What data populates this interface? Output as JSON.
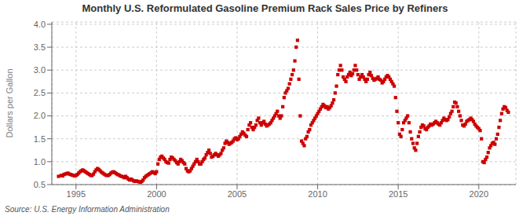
{
  "chart_data": {
    "type": "scatter",
    "title": "Monthly U.S. Reformulated Gasoline Premium Rack Sales Price by Refiners",
    "ylabel": "Dollars per Gallon",
    "annotations": [
      "Source: U.S. Energy Information Administration"
    ],
    "color": "#cc0000",
    "marker": "square",
    "grid": true,
    "xlim": [
      1993.5,
      2022.3
    ],
    "ylim": [
      0.5,
      4.05
    ],
    "xticks": [
      1995,
      2000,
      2005,
      2010,
      2015,
      2020
    ],
    "yticks": [
      0.5,
      {
        "value": 1.0,
        "label": "1.0"
      },
      1.5,
      {
        "value": 2.0,
        "label": "2.0"
      },
      2.5,
      {
        "value": 3.0,
        "label": "3.0"
      },
      3.5,
      {
        "value": 4.0,
        "label": "4.0"
      }
    ],
    "x": [
      1993.917,
      1994.083,
      1994.167,
      1994.25,
      1994.333,
      1994.417,
      1994.5,
      1994.583,
      1994.667,
      1994.75,
      1994.833,
      1994.917,
      1995.0,
      1995.083,
      1995.167,
      1995.25,
      1995.333,
      1995.417,
      1995.5,
      1995.583,
      1995.667,
      1995.75,
      1995.833,
      1995.917,
      1996.0,
      1996.083,
      1996.167,
      1996.25,
      1996.333,
      1996.417,
      1996.5,
      1996.583,
      1996.667,
      1996.75,
      1996.833,
      1996.917,
      1997.0,
      1997.083,
      1997.167,
      1997.25,
      1997.333,
      1997.417,
      1997.5,
      1997.583,
      1997.667,
      1997.75,
      1997.833,
      1997.917,
      1998.0,
      1998.083,
      1998.167,
      1998.25,
      1998.333,
      1998.417,
      1998.5,
      1998.583,
      1998.667,
      1998.75,
      1998.833,
      1998.917,
      1999.0,
      1999.083,
      1999.167,
      1999.25,
      1999.333,
      1999.417,
      1999.5,
      1999.583,
      1999.667,
      1999.75,
      1999.833,
      1999.917,
      2000.0,
      2000.083,
      2000.167,
      2000.25,
      2000.333,
      2000.417,
      2000.5,
      2000.583,
      2000.667,
      2000.75,
      2000.833,
      2000.917,
      2001.0,
      2001.083,
      2001.167,
      2001.25,
      2001.333,
      2001.417,
      2001.5,
      2001.583,
      2001.667,
      2001.75,
      2001.833,
      2001.917,
      2002.0,
      2002.083,
      2002.167,
      2002.25,
      2002.333,
      2002.417,
      2002.5,
      2002.583,
      2002.667,
      2002.75,
      2002.833,
      2002.917,
      2003.0,
      2003.083,
      2003.167,
      2003.25,
      2003.333,
      2003.417,
      2003.5,
      2003.583,
      2003.667,
      2003.75,
      2003.833,
      2003.917,
      2004.0,
      2004.083,
      2004.167,
      2004.25,
      2004.333,
      2004.417,
      2004.5,
      2004.583,
      2004.667,
      2004.75,
      2004.833,
      2004.917,
      2005.0,
      2005.083,
      2005.167,
      2005.25,
      2005.333,
      2005.417,
      2005.5,
      2005.583,
      2005.667,
      2005.75,
      2005.833,
      2005.917,
      2006.0,
      2006.083,
      2006.167,
      2006.25,
      2006.333,
      2006.417,
      2006.5,
      2006.583,
      2006.667,
      2006.75,
      2006.833,
      2006.917,
      2007.0,
      2007.083,
      2007.167,
      2007.25,
      2007.333,
      2007.417,
      2007.5,
      2007.583,
      2007.667,
      2007.75,
      2007.833,
      2007.917,
      2008.0,
      2008.083,
      2008.167,
      2008.25,
      2008.333,
      2008.417,
      2008.5,
      2008.583,
      2008.667,
      2008.75,
      2008.833,
      2008.917,
      2009.0,
      2009.083,
      2009.167,
      2009.25,
      2009.333,
      2009.417,
      2009.5,
      2009.583,
      2009.667,
      2009.75,
      2009.833,
      2009.917,
      2010.0,
      2010.083,
      2010.167,
      2010.25,
      2010.333,
      2010.417,
      2010.5,
      2010.583,
      2010.667,
      2010.75,
      2010.833,
      2010.917,
      2011.0,
      2011.083,
      2011.167,
      2011.25,
      2011.333,
      2011.417,
      2011.5,
      2011.583,
      2011.667,
      2011.75,
      2011.833,
      2011.917,
      2012.0,
      2012.083,
      2012.167,
      2012.25,
      2012.333,
      2012.417,
      2012.5,
      2012.583,
      2012.667,
      2012.75,
      2012.833,
      2012.917,
      2013.0,
      2013.083,
      2013.167,
      2013.25,
      2013.333,
      2013.417,
      2013.5,
      2013.583,
      2013.667,
      2013.75,
      2013.833,
      2013.917,
      2014.0,
      2014.083,
      2014.167,
      2014.25,
      2014.333,
      2014.417,
      2014.5,
      2014.583,
      2014.667,
      2014.75,
      2014.833,
      2014.917,
      2015.0,
      2015.083,
      2015.167,
      2015.25,
      2015.333,
      2015.417,
      2015.5,
      2015.583,
      2015.667,
      2015.75,
      2015.833,
      2015.917,
      2016.0,
      2016.083,
      2016.167,
      2016.25,
      2016.333,
      2016.417,
      2016.5,
      2016.583,
      2016.667,
      2016.75,
      2016.833,
      2016.917,
      2017.0,
      2017.083,
      2017.167,
      2017.25,
      2017.333,
      2017.417,
      2017.5,
      2017.583,
      2017.667,
      2017.75,
      2017.833,
      2017.917,
      2018.0,
      2018.083,
      2018.167,
      2018.25,
      2018.333,
      2018.417,
      2018.5,
      2018.583,
      2018.667,
      2018.75,
      2018.833,
      2018.917,
      2019.0,
      2019.083,
      2019.167,
      2019.25,
      2019.333,
      2019.417,
      2019.5,
      2019.583,
      2019.667,
      2019.75,
      2019.833,
      2019.917,
      2020.0,
      2020.083,
      2020.167,
      2020.25,
      2020.333,
      2020.417,
      2020.5,
      2020.583,
      2020.667,
      2020.75,
      2020.833,
      2020.917,
      2021.0,
      2021.083,
      2021.167,
      2021.25,
      2021.333,
      2021.417,
      2021.5,
      2021.583,
      2021.667,
      2021.75,
      2021.833
    ],
    "values": [
      0.68,
      0.7,
      0.69,
      0.72,
      0.73,
      0.74,
      0.75,
      0.73,
      0.72,
      0.71,
      0.7,
      0.69,
      0.7,
      0.72,
      0.75,
      0.78,
      0.8,
      0.82,
      0.8,
      0.78,
      0.76,
      0.74,
      0.72,
      0.7,
      0.7,
      0.73,
      0.78,
      0.82,
      0.85,
      0.83,
      0.8,
      0.77,
      0.75,
      0.73,
      0.71,
      0.7,
      0.7,
      0.72,
      0.75,
      0.77,
      0.78,
      0.76,
      0.74,
      0.72,
      0.71,
      0.69,
      0.68,
      0.67,
      0.65,
      0.68,
      0.65,
      0.62,
      0.6,
      0.62,
      0.6,
      0.58,
      0.57,
      0.58,
      0.57,
      0.56,
      0.55,
      0.57,
      0.6,
      0.65,
      0.68,
      0.7,
      0.72,
      0.74,
      0.76,
      0.78,
      0.76,
      0.74,
      0.78,
      0.95,
      1.05,
      1.1,
      1.12,
      1.08,
      1.05,
      1.0,
      0.98,
      0.97,
      1.05,
      1.1,
      1.08,
      1.05,
      1.02,
      0.98,
      0.95,
      1.0,
      1.05,
      1.02,
      0.98,
      0.95,
      0.85,
      0.8,
      0.78,
      0.8,
      0.85,
      0.9,
      0.95,
      1.0,
      1.05,
      1.0,
      0.95,
      0.95,
      1.0,
      1.05,
      1.08,
      1.15,
      1.2,
      1.25,
      1.18,
      1.1,
      1.12,
      1.15,
      1.18,
      1.15,
      1.12,
      1.15,
      1.18,
      1.25,
      1.3,
      1.4,
      1.45,
      1.42,
      1.38,
      1.4,
      1.42,
      1.45,
      1.5,
      1.52,
      1.48,
      1.5,
      1.55,
      1.6,
      1.65,
      1.62,
      1.58,
      1.55,
      1.7,
      1.8,
      1.85,
      1.75,
      1.7,
      1.75,
      1.8,
      1.9,
      1.95,
      1.85,
      1.8,
      1.85,
      1.88,
      1.82,
      1.78,
      1.8,
      1.82,
      1.85,
      1.9,
      1.95,
      2.0,
      2.05,
      2.1,
      2.0,
      1.95,
      2.0,
      2.2,
      2.4,
      2.5,
      2.55,
      2.6,
      2.7,
      2.8,
      2.9,
      3.0,
      3.2,
      3.5,
      3.65,
      2.8,
      2.0,
      1.45,
      1.4,
      1.35,
      1.5,
      1.55,
      1.65,
      1.7,
      1.8,
      1.85,
      1.9,
      1.95,
      2.0,
      2.05,
      2.1,
      2.15,
      2.2,
      2.25,
      2.22,
      2.18,
      2.2,
      2.15,
      2.18,
      2.22,
      2.28,
      2.35,
      2.5,
      2.65,
      2.9,
      3.0,
      3.1,
      3.0,
      2.85,
      2.8,
      2.75,
      2.85,
      2.9,
      2.95,
      2.88,
      2.92,
      3.0,
      3.1,
      3.0,
      2.9,
      2.8,
      2.85,
      2.9,
      2.85,
      2.8,
      2.75,
      2.8,
      2.9,
      2.95,
      2.88,
      2.82,
      2.78,
      2.8,
      2.82,
      2.85,
      2.8,
      2.78,
      2.72,
      2.75,
      2.8,
      2.85,
      2.88,
      2.85,
      2.8,
      2.75,
      2.7,
      2.65,
      2.4,
      2.1,
      1.85,
      1.6,
      1.55,
      1.7,
      1.85,
      1.9,
      1.95,
      2.0,
      1.85,
      1.65,
      1.5,
      1.4,
      1.3,
      1.25,
      1.4,
      1.55,
      1.65,
      1.75,
      1.8,
      1.78,
      1.72,
      1.7,
      1.75,
      1.78,
      1.82,
      1.8,
      1.82,
      1.85,
      1.88,
      1.85,
      1.82,
      1.8,
      1.85,
      1.9,
      1.95,
      1.92,
      1.9,
      1.92,
      1.98,
      2.05,
      2.1,
      2.2,
      2.3,
      2.28,
      2.2,
      2.1,
      2.0,
      1.9,
      1.8,
      1.78,
      1.82,
      1.88,
      1.9,
      1.92,
      1.95,
      1.92,
      1.88,
      1.82,
      1.78,
      1.75,
      1.72,
      1.68,
      1.5,
      1.0,
      0.98,
      1.05,
      1.1,
      1.2,
      1.3,
      1.35,
      1.4,
      1.42,
      1.38,
      1.5,
      1.6,
      1.75,
      1.9,
      2.05,
      2.15,
      2.2,
      2.18,
      2.12,
      2.08
    ]
  }
}
